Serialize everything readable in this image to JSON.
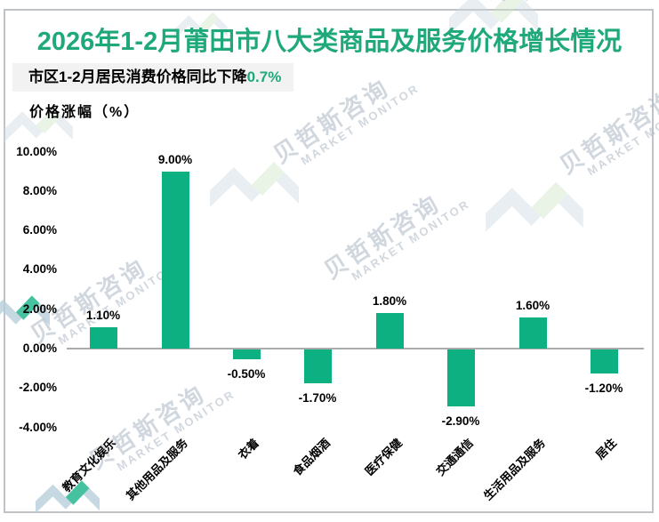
{
  "header": {
    "title": "2026年1-2月莆田市八大类商品及服务价格增长情况",
    "subtitle_prefix": "市区1-2月居民消费价格同比下降",
    "subtitle_value": "0.7%",
    "y_axis_caption": "价格涨幅（%）"
  },
  "watermark": {
    "cn": "贝哲斯咨询",
    "en": "MARKET MONITOR"
  },
  "colors": {
    "title_green": "#1FA97B",
    "bar_green": "#0DB181",
    "subtitle_value_green": "#1FA97B",
    "subtitle_bg": "#F2F2F2",
    "axis_line": "#ABABAB",
    "frame_border": "#BFC3C7",
    "text": "#000000"
  },
  "chart_data": {
    "type": "bar",
    "title": "2026年1-2月莆田市八大类商品及服务价格增长情况",
    "subtitle": "市区1-2月居民消费价格同比下降0.7%",
    "categories": [
      "教育文化娱乐",
      "其他用品及服务",
      "衣着",
      "食品烟酒",
      "医疗保健",
      "交通通信",
      "生活用品及服务",
      "居住"
    ],
    "values": [
      1.1,
      9.0,
      -0.5,
      -1.7,
      1.8,
      -2.9,
      1.6,
      -1.2
    ],
    "value_labels": [
      "1.10%",
      "9.00%",
      "-0.50%",
      "-1.70%",
      "1.80%",
      "-2.90%",
      "1.60%",
      "-1.20%"
    ],
    "xlabel": "",
    "ylabel": "价格涨幅（%）",
    "ylim": [
      -4,
      10
    ],
    "ytick_values": [
      10,
      8,
      6,
      4,
      2,
      0,
      -2,
      -4
    ],
    "ytick_labels": [
      "10.00%",
      "8.00%",
      "6.00%",
      "4.00%",
      "2.00%",
      "0.00%",
      "-2.00%",
      "-4.00%"
    ],
    "grid": false,
    "legend_position": "none",
    "bar_color": "#0DB181"
  }
}
